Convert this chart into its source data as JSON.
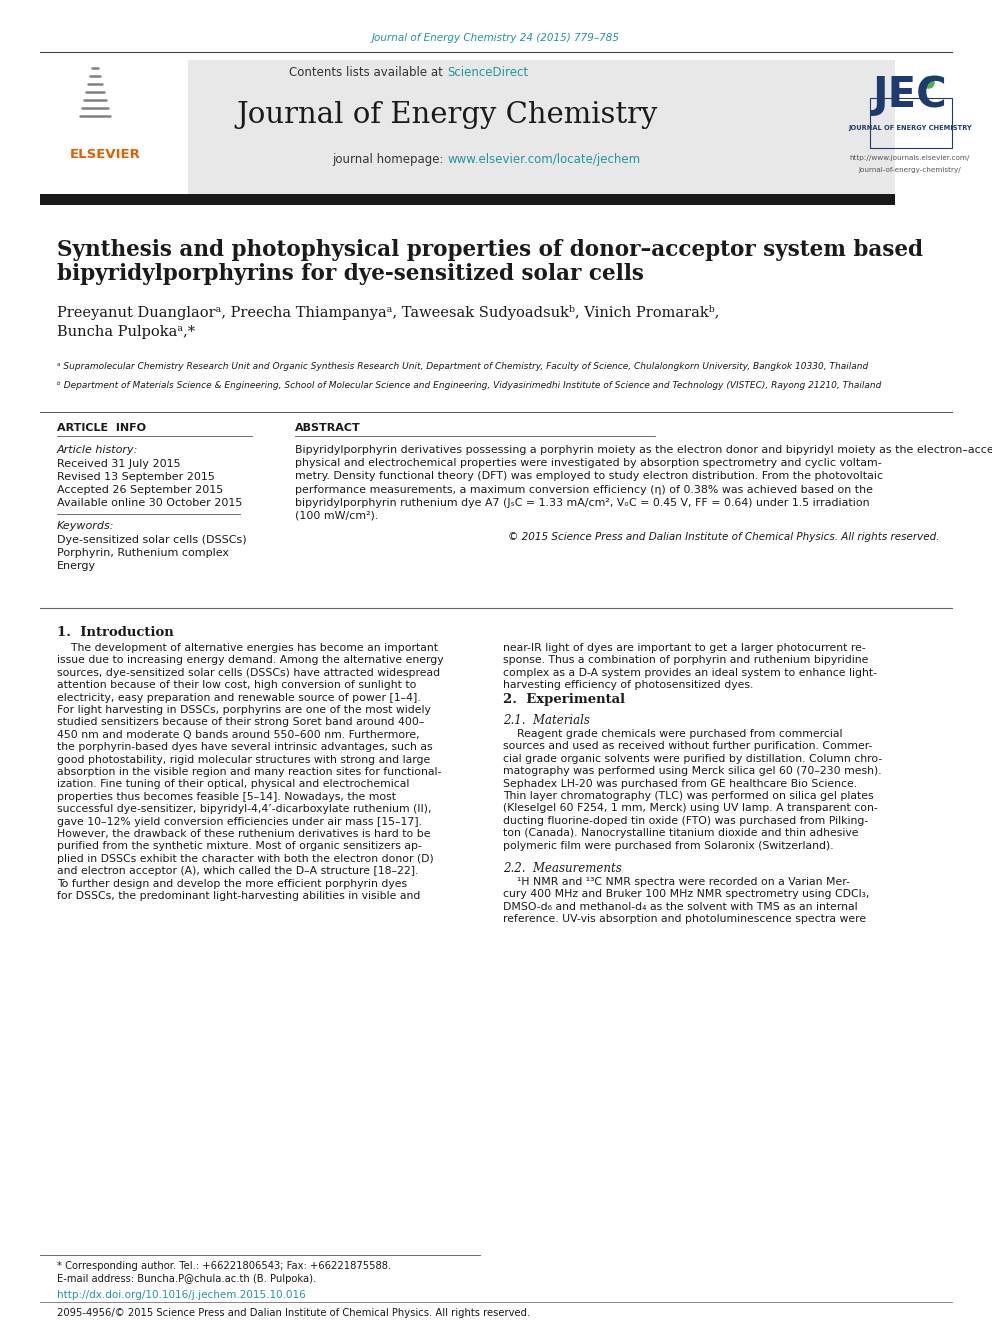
{
  "page_width": 9.92,
  "page_height": 13.23,
  "bg_color": "#ffffff",
  "journal_ref": "Journal of Energy Chemistry 24 (2015) 779–785",
  "journal_ref_color": "#2196a0",
  "header_bg": "#e8e8e8",
  "contents_line": "Contents lists available at ",
  "sciencedirect": "ScienceDirect",
  "sciencedirect_color": "#2196a0",
  "journal_title": "Journal of Energy Chemistry",
  "journal_homepage_prefix": "journal homepage: ",
  "journal_homepage_url": "www.elsevier.com/locate/jechem",
  "journal_homepage_color": "#2196a0",
  "paper_title_line1": "Synthesis and photophysical properties of donor–acceptor system based",
  "paper_title_line2": "bipyridylporphyrins for dye-sensitized solar cells",
  "authors": "Preeyanut Duanglaorᵃ, Preecha Thiampanyaᵃ, Taweesak Sudyoadsukᵇ, Vinich Promarakᵇ,",
  "authors_line2": "Buncha Pulpokaᵃ,*",
  "affil_a": "ᵃ Supramolecular Chemistry Research Unit and Organic Synthesis Research Unit, Department of Chemistry, Faculty of Science, Chulalongkorn University, Bangkok 10330, Thailand",
  "affil_b": "ᵇ Department of Materials Science & Engineering, School of Molecular Science and Engineering, Vidyasirimedhi Institute of Science and Technology (VISTEC), Rayong 21210, Thailand",
  "article_info_title": "ARTICLE  INFO",
  "article_history_title": "Article history:",
  "received": "Received 31 July 2015",
  "revised": "Revised 13 September 2015",
  "accepted": "Accepted 26 September 2015",
  "available": "Available online 30 October 2015",
  "keywords_title": "Keywords:",
  "keyword1": "Dye-sensitized solar cells (DSSCs)",
  "keyword2": "Porphyrin, Ruthenium complex",
  "keyword3": "Energy",
  "abstract_title": "ABSTRACT",
  "copyright_text": "© 2015 Science Press and Dalian Institute of Chemical Physics. All rights reserved.",
  "intro_section": "1.  Introduction",
  "exp_section": "2.  Experimental",
  "materials_section": "2.1.  Materials",
  "measure_section": "2.2.  Measurements",
  "footer_note": "* Corresponding author. Tel.: +66221806543; Fax: +66221875588.",
  "footer_email": "E-mail address: Buncha.P@chula.ac.th (B. Pulpoka).",
  "footer_doi": "http://dx.doi.org/10.1016/j.jechem.2015.10.016",
  "footer_doi_color": "#2196a0",
  "footer_issn": "2095-4956/© 2015 Science Press and Dalian Institute of Chemical Physics. All rights reserved.",
  "dark_bar_color": "#1a1a1a",
  "link_color": "#2196a0",
  "abstract_lines": [
    "Bipyridylporphyrin derivatives possessing a porphyrin moiety as the electron donor and bipyridyl moiety as the electron–acceptor were designed and synthesized for dye-sensitized solar cells (DSSCs). The photo-",
    "physical and electrochemical properties were investigated by absorption spectrometry and cyclic voltam-",
    "metry. Density functional theory (DFT) was employed to study electron distribution. From the photovoltaic",
    "performance measurements, a maximum conversion efficiency (η) of 0.38% was achieved based on the",
    "bipyridylporphyrin ruthenium dye A7 (JₛC = 1.33 mA/cm², VₒC = 0.45 V, FF = 0.64) under 1.5 irradiation",
    "(100 mW/cm²)."
  ],
  "intro_left_lines": [
    "    The development of alternative energies has become an important",
    "issue due to increasing energy demand. Among the alternative energy",
    "sources, dye-sensitized solar cells (DSSCs) have attracted widespread",
    "attention because of their low cost, high conversion of sunlight to",
    "electricity, easy preparation and renewable source of power [1–4].",
    "For light harvesting in DSSCs, porphyrins are one of the most widely",
    "studied sensitizers because of their strong Soret band around 400–",
    "450 nm and moderate Q bands around 550–600 nm. Furthermore,",
    "the porphyrin-based dyes have several intrinsic advantages, such as",
    "good photostability, rigid molecular structures with strong and large",
    "absorption in the visible region and many reaction sites for functional-",
    "ization. Fine tuning of their optical, physical and electrochemical",
    "properties thus becomes feasible [5–14]. Nowadays, the most",
    "successful dye-sensitizer, bipyridyl-4,4’-dicarboxylate ruthenium (II),",
    "gave 10–12% yield conversion efficiencies under air mass [15–17].",
    "However, the drawback of these ruthenium derivatives is hard to be",
    "purified from the synthetic mixture. Most of organic sensitizers ap-",
    "plied in DSSCs exhibit the character with both the electron donor (D)",
    "and electron acceptor (A), which called the D–A structure [18–22].",
    "To further design and develop the more efficient porphyrin dyes",
    "for DSSCs, the predominant light-harvesting abilities in visible and"
  ],
  "intro_right_lines": [
    "near-IR light of dyes are important to get a larger photocurrent re-",
    "sponse. Thus a combination of porphyrin and ruthenium bipyridine",
    "complex as a D-A system provides an ideal system to enhance light-",
    "harvesting efficiency of photosensitized dyes."
  ],
  "materials_lines": [
    "    Reagent grade chemicals were purchased from commercial",
    "sources and used as received without further purification. Commer-",
    "cial grade organic solvents were purified by distillation. Column chro-",
    "matography was performed using Merck silica gel 60 (70–230 mesh).",
    "Sephadex LH-20 was purchased from GE healthcare Bio Science.",
    "Thin layer chromatography (TLC) was performed on silica gel plates",
    "(Kleselgel 60 F254, 1 mm, Merck) using UV lamp. A transparent con-",
    "ducting fluorine-doped tin oxide (FTO) was purchased from Pilking-",
    "ton (Canada). Nanocrystalline titanium dioxide and thin adhesive",
    "polymeric film were purchased from Solaronix (Switzerland)."
  ],
  "measure_lines": [
    "    ¹H NMR and ¹³C NMR spectra were recorded on a Varian Mer-",
    "cury 400 MHz and Bruker 100 MHz NMR spectrometry using CDCl₃,",
    "DMSO-d₆ and methanol-d₄ as the solvent with TMS as an internal",
    "reference. UV-vis absorption and photoluminescence spectra were"
  ]
}
